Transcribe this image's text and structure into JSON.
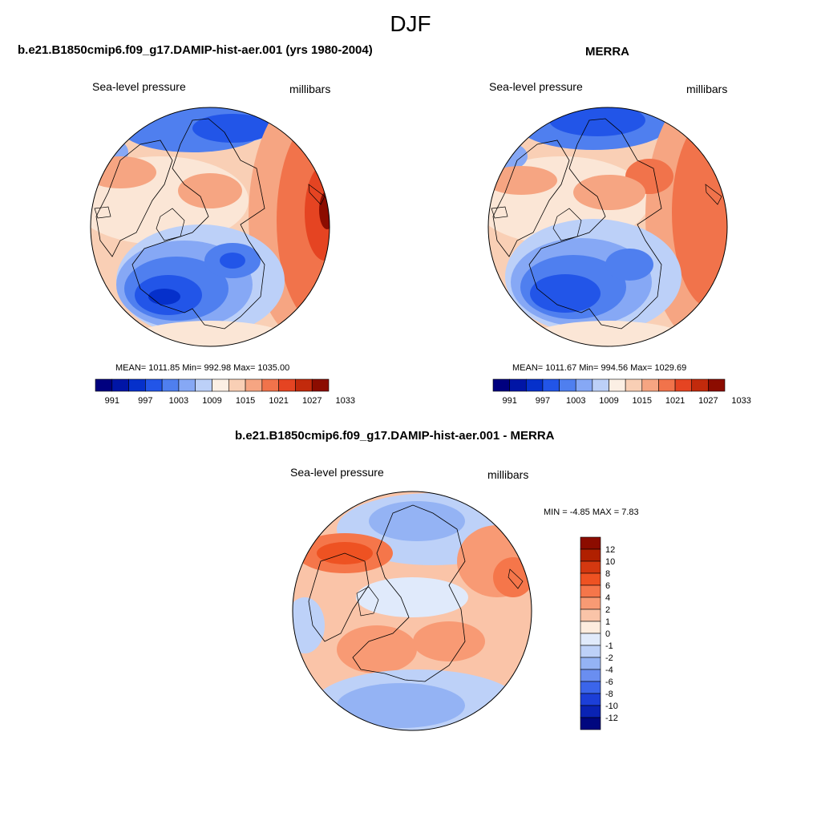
{
  "title": "DJF",
  "panels": [
    {
      "title": "b.e21.B1850cmip6.f09_g17.DAMIP-hist-aer.001 (yrs 1980-2004)",
      "left_label": "Sea-level pressure",
      "right_label": "millibars",
      "stats_text": "MEAN= 1011.85  Min= 992.98  Max= 1035.00"
    },
    {
      "title": "MERRA",
      "left_label": "Sea-level pressure",
      "right_label": "millibars",
      "stats_text": "MEAN= 1011.67  Min= 994.56  Max= 1029.69"
    },
    {
      "title": "b.e21.B1850cmip6.f09_g17.DAMIP-hist-aer.001 - MERRA",
      "left_label": "Sea-level pressure",
      "right_label": "millibars",
      "stats_text": "MIN =  -4.85 MAX =   7.83"
    }
  ],
  "colorbar_abs": {
    "ticks": [
      "991",
      "997",
      "1003",
      "1009",
      "1015",
      "1021",
      "1027",
      "1033"
    ],
    "colors": [
      "#00007f",
      "#0015a6",
      "#0530cb",
      "#2255e8",
      "#4f7fef",
      "#86a8f5",
      "#bcd0f8",
      "#fbefe4",
      "#f9cfb5",
      "#f6a582",
      "#f1734b",
      "#e54422",
      "#c22a0c",
      "#8c0c00"
    ]
  },
  "colorbar_diff": {
    "ticks": [
      "12",
      "10",
      "8",
      "6",
      "4",
      "2",
      "1",
      "0",
      "-1",
      "-2",
      "-4",
      "-6",
      "-8",
      "-10",
      "-12"
    ],
    "colors": [
      "#8c0c00",
      "#b02000",
      "#d43810",
      "#ee5222",
      "#f5764a",
      "#f89a74",
      "#fac4a8",
      "#fdecde",
      "#e0eafb",
      "#bdd1f8",
      "#94b3f4",
      "#6a8ef0",
      "#3b65ea",
      "#1c3fd8",
      "#0a23b4",
      "#00077f"
    ]
  }
}
